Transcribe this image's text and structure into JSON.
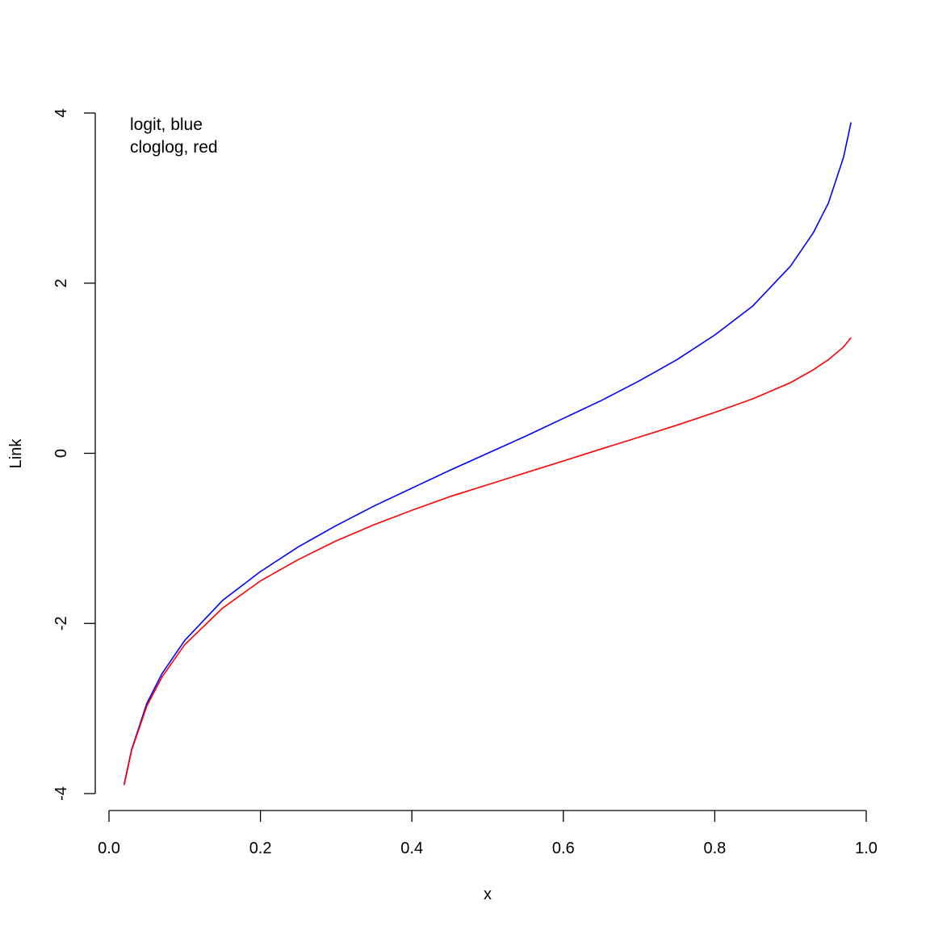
{
  "chart_data": {
    "type": "line",
    "title": "",
    "xlabel": "x",
    "ylabel": "Link",
    "xlim": [
      0.0,
      1.0
    ],
    "ylim": [
      -4,
      4
    ],
    "x_ticks": [
      "0.0",
      "0.2",
      "0.4",
      "0.6",
      "0.8",
      "1.0"
    ],
    "y_ticks": [
      "-4",
      "-2",
      "0",
      "2",
      "4"
    ],
    "grid": false,
    "annotations": [
      "logit, blue",
      "cloglog, red"
    ],
    "x": [
      0.02,
      0.03,
      0.05,
      0.07,
      0.1,
      0.15,
      0.2,
      0.25,
      0.3,
      0.35,
      0.4,
      0.45,
      0.5,
      0.55,
      0.6,
      0.65,
      0.7,
      0.75,
      0.8,
      0.85,
      0.9,
      0.93,
      0.95,
      0.97,
      0.98
    ],
    "series": [
      {
        "color": "#0000ff",
        "values": [
          -3.89,
          -3.48,
          -2.94,
          -2.59,
          -2.2,
          -1.73,
          -1.39,
          -1.1,
          -0.85,
          -0.62,
          -0.41,
          -0.2,
          0.0,
          0.2,
          0.41,
          0.62,
          0.85,
          1.1,
          1.39,
          1.73,
          2.2,
          2.59,
          2.94,
          3.48,
          3.89
        ]
      },
      {
        "color": "#ff0000",
        "values": [
          -3.9,
          -3.49,
          -2.97,
          -2.63,
          -2.25,
          -1.82,
          -1.5,
          -1.25,
          -1.03,
          -0.84,
          -0.67,
          -0.51,
          -0.37,
          -0.23,
          -0.09,
          0.05,
          0.19,
          0.33,
          0.48,
          0.64,
          0.83,
          0.98,
          1.1,
          1.25,
          1.36
        ]
      }
    ]
  }
}
